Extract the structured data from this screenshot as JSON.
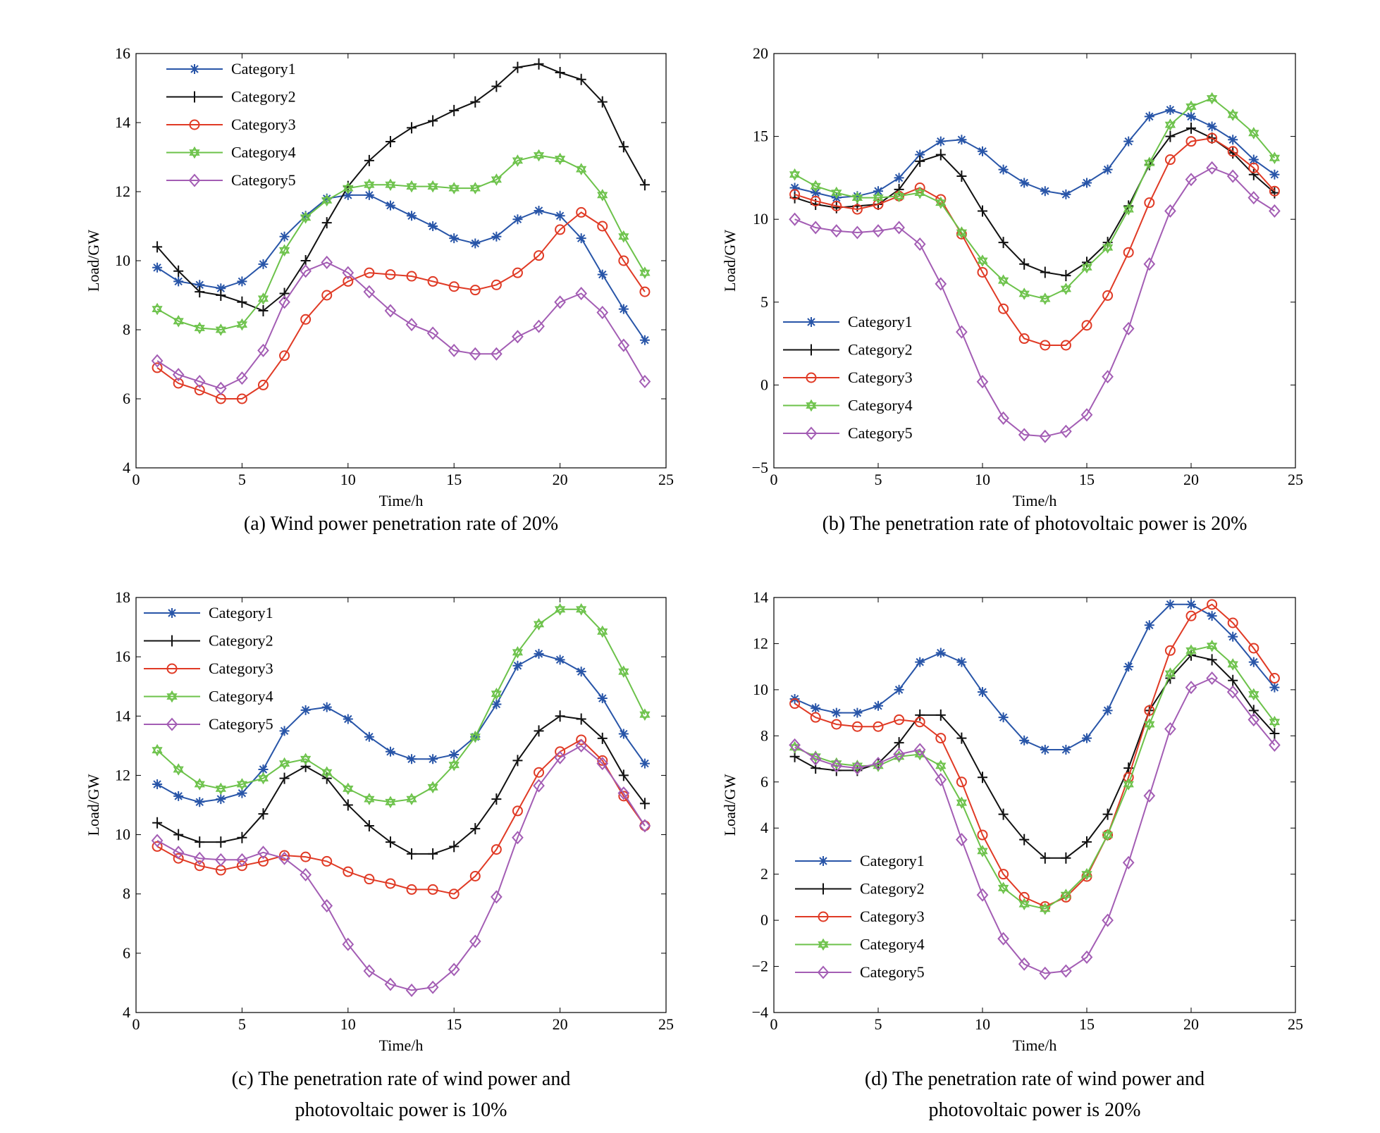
{
  "series_styles": [
    {
      "name": "Category1",
      "color": "#2855a8",
      "marker": "asterisk"
    },
    {
      "name": "Category2",
      "color": "#111111",
      "marker": "plus"
    },
    {
      "name": "Category3",
      "color": "#e03a25",
      "marker": "circle"
    },
    {
      "name": "Category4",
      "color": "#6cc24a",
      "marker": "hexagram"
    },
    {
      "name": "Category5",
      "color": "#a35db4",
      "marker": "diamond"
    }
  ],
  "chart_data": [
    {
      "type": "line",
      "title": "",
      "caption_lines": [
        "(a) Wind power penetration rate of 20%"
      ],
      "xlabel": "Time/h",
      "ylabel": "Load/GW",
      "xlim": [
        0,
        25
      ],
      "ylim": [
        4,
        16
      ],
      "xticks": [
        0,
        5,
        10,
        15,
        20,
        25
      ],
      "yticks": [
        4,
        6,
        8,
        10,
        12,
        14,
        16
      ],
      "legend": "top-left",
      "x": [
        1,
        2,
        3,
        4,
        5,
        6,
        7,
        8,
        9,
        10,
        11,
        12,
        13,
        14,
        15,
        16,
        17,
        18,
        19,
        20,
        21,
        22,
        23,
        24
      ],
      "series": [
        {
          "name": "Category1",
          "values": [
            9.8,
            9.4,
            9.3,
            9.2,
            9.4,
            9.9,
            10.7,
            11.3,
            11.8,
            11.9,
            11.9,
            11.6,
            11.3,
            11.0,
            10.65,
            10.5,
            10.7,
            11.2,
            11.45,
            11.3,
            10.65,
            9.6,
            8.6,
            7.7
          ]
        },
        {
          "name": "Category2",
          "values": [
            10.4,
            9.7,
            9.1,
            9.0,
            8.8,
            8.55,
            9.05,
            10.0,
            11.1,
            12.15,
            12.9,
            13.45,
            13.85,
            14.05,
            14.35,
            14.6,
            15.05,
            15.6,
            15.7,
            15.45,
            15.25,
            14.6,
            13.3,
            12.2
          ]
        },
        {
          "name": "Category3",
          "values": [
            6.9,
            6.45,
            6.25,
            6.0,
            6.0,
            6.4,
            7.25,
            8.3,
            9.0,
            9.4,
            9.65,
            9.6,
            9.55,
            9.4,
            9.25,
            9.15,
            9.3,
            9.65,
            10.15,
            10.9,
            11.4,
            11.0,
            10.0,
            9.1
          ]
        },
        {
          "name": "Category4",
          "values": [
            8.6,
            8.25,
            8.05,
            8.0,
            8.15,
            8.9,
            10.3,
            11.25,
            11.75,
            12.1,
            12.2,
            12.2,
            12.15,
            12.15,
            12.1,
            12.1,
            12.35,
            12.9,
            13.05,
            12.95,
            12.65,
            11.9,
            10.7,
            9.65
          ]
        },
        {
          "name": "Category5",
          "values": [
            7.1,
            6.7,
            6.5,
            6.3,
            6.6,
            7.4,
            8.8,
            9.7,
            9.95,
            9.65,
            9.1,
            8.55,
            8.15,
            7.9,
            7.4,
            7.3,
            7.3,
            7.8,
            8.1,
            8.8,
            9.05,
            8.5,
            7.55,
            6.5
          ]
        }
      ]
    },
    {
      "type": "line",
      "title": "",
      "caption_lines": [
        "(b) The penetration rate of photovoltaic power is 20%"
      ],
      "xlabel": "Time/h",
      "ylabel": "Load/GW",
      "xlim": [
        0,
        25
      ],
      "ylim": [
        -5,
        20
      ],
      "xticks": [
        0,
        5,
        10,
        15,
        20,
        25
      ],
      "yticks": [
        -5,
        0,
        5,
        10,
        15,
        20
      ],
      "legend": "bottom-left",
      "x": [
        1,
        2,
        3,
        4,
        5,
        6,
        7,
        8,
        9,
        10,
        11,
        12,
        13,
        14,
        15,
        16,
        17,
        18,
        19,
        20,
        21,
        22,
        23,
        24
      ],
      "series": [
        {
          "name": "Category1",
          "values": [
            11.9,
            11.6,
            11.3,
            11.4,
            11.7,
            12.5,
            13.9,
            14.7,
            14.8,
            14.1,
            13.0,
            12.2,
            11.7,
            11.5,
            12.2,
            13.0,
            14.7,
            16.2,
            16.6,
            16.2,
            15.6,
            14.8,
            13.6,
            12.7
          ]
        },
        {
          "name": "Category2",
          "values": [
            11.3,
            10.9,
            10.7,
            10.8,
            10.9,
            11.8,
            13.5,
            13.9,
            12.6,
            10.5,
            8.6,
            7.3,
            6.8,
            6.6,
            7.4,
            8.6,
            10.8,
            13.3,
            15.0,
            15.5,
            14.9,
            14.0,
            12.7,
            11.6
          ]
        },
        {
          "name": "Category3",
          "values": [
            11.5,
            11.1,
            10.8,
            10.6,
            10.9,
            11.4,
            11.9,
            11.2,
            9.1,
            6.8,
            4.6,
            2.8,
            2.4,
            2.4,
            3.6,
            5.4,
            8.0,
            11.0,
            13.6,
            14.7,
            14.9,
            14.1,
            13.1,
            11.7
          ]
        },
        {
          "name": "Category4",
          "values": [
            12.7,
            12.0,
            11.6,
            11.3,
            11.3,
            11.4,
            11.6,
            11.0,
            9.2,
            7.5,
            6.3,
            5.5,
            5.2,
            5.8,
            7.1,
            8.3,
            10.6,
            13.4,
            15.7,
            16.8,
            17.3,
            16.3,
            15.2,
            13.7
          ]
        },
        {
          "name": "Category5",
          "values": [
            10.0,
            9.5,
            9.3,
            9.2,
            9.3,
            9.5,
            8.5,
            6.1,
            3.2,
            0.2,
            -2.0,
            -3.0,
            -3.1,
            -2.8,
            -1.8,
            0.5,
            3.4,
            7.3,
            10.5,
            12.4,
            13.1,
            12.6,
            11.3,
            10.5
          ]
        }
      ]
    },
    {
      "type": "line",
      "title": "",
      "caption_lines": [
        "(c) The penetration rate of wind power and",
        "photovoltaic power is 10%"
      ],
      "xlabel": "Time/h",
      "ylabel": "Load/GW",
      "xlim": [
        0,
        25
      ],
      "ylim": [
        4,
        18
      ],
      "xticks": [
        0,
        5,
        10,
        15,
        20,
        25
      ],
      "yticks": [
        4,
        6,
        8,
        10,
        12,
        14,
        16,
        18
      ],
      "legend": "top-left",
      "x": [
        1,
        2,
        3,
        4,
        5,
        6,
        7,
        8,
        9,
        10,
        11,
        12,
        13,
        14,
        15,
        16,
        17,
        18,
        19,
        20,
        21,
        22,
        23,
        24
      ],
      "series": [
        {
          "name": "Category1",
          "values": [
            11.7,
            11.3,
            11.1,
            11.2,
            11.4,
            12.2,
            13.5,
            14.2,
            14.3,
            13.9,
            13.3,
            12.8,
            12.55,
            12.55,
            12.7,
            13.3,
            14.4,
            15.7,
            16.1,
            15.9,
            15.5,
            14.6,
            13.4,
            12.4
          ]
        },
        {
          "name": "Category2",
          "values": [
            10.4,
            10.0,
            9.75,
            9.75,
            9.9,
            10.7,
            11.9,
            12.3,
            11.9,
            11.0,
            10.3,
            9.75,
            9.35,
            9.35,
            9.6,
            10.2,
            11.2,
            12.5,
            13.5,
            14.0,
            13.9,
            13.25,
            12.0,
            11.05
          ]
        },
        {
          "name": "Category3",
          "values": [
            9.6,
            9.2,
            8.95,
            8.8,
            8.95,
            9.1,
            9.3,
            9.25,
            9.1,
            8.75,
            8.5,
            8.35,
            8.15,
            8.15,
            8.0,
            8.6,
            9.5,
            10.8,
            12.1,
            12.8,
            13.2,
            12.5,
            11.3,
            10.3
          ]
        },
        {
          "name": "Category4",
          "values": [
            12.85,
            12.2,
            11.7,
            11.55,
            11.7,
            11.9,
            12.4,
            12.55,
            12.1,
            11.55,
            11.2,
            11.1,
            11.2,
            11.6,
            12.35,
            13.3,
            14.75,
            16.15,
            17.1,
            17.6,
            17.6,
            16.85,
            15.5,
            14.05
          ]
        },
        {
          "name": "Category5",
          "values": [
            9.8,
            9.4,
            9.2,
            9.15,
            9.15,
            9.4,
            9.2,
            8.65,
            7.6,
            6.3,
            5.4,
            4.95,
            4.75,
            4.85,
            5.45,
            6.4,
            7.9,
            9.9,
            11.65,
            12.6,
            13.0,
            12.4,
            11.4,
            10.3
          ]
        }
      ]
    },
    {
      "type": "line",
      "title": "",
      "caption_lines": [
        "(d) The penetration rate of wind power and",
        "photovoltaic power is 20%"
      ],
      "xlabel": "Time/h",
      "ylabel": "Load/GW",
      "xlim": [
        0,
        25
      ],
      "ylim": [
        -4,
        14
      ],
      "xticks": [
        0,
        5,
        10,
        15,
        20,
        25
      ],
      "yticks": [
        -4,
        -2,
        0,
        2,
        4,
        6,
        8,
        10,
        12,
        14
      ],
      "legend": "bottom-left",
      "x": [
        1,
        2,
        3,
        4,
        5,
        6,
        7,
        8,
        9,
        10,
        11,
        12,
        13,
        14,
        15,
        16,
        17,
        18,
        19,
        20,
        21,
        22,
        23,
        24
      ],
      "series": [
        {
          "name": "Category1",
          "values": [
            9.6,
            9.2,
            9.0,
            9.0,
            9.3,
            10.0,
            11.2,
            11.6,
            11.2,
            9.9,
            8.8,
            7.8,
            7.4,
            7.4,
            7.9,
            9.1,
            11.0,
            12.8,
            13.7,
            13.7,
            13.2,
            12.3,
            11.2,
            10.1
          ]
        },
        {
          "name": "Category2",
          "values": [
            7.1,
            6.6,
            6.5,
            6.5,
            6.8,
            7.7,
            8.9,
            8.9,
            7.9,
            6.2,
            4.6,
            3.5,
            2.7,
            2.7,
            3.4,
            4.6,
            6.6,
            9.1,
            10.5,
            11.5,
            11.3,
            10.4,
            9.1,
            8.1
          ]
        },
        {
          "name": "Category3",
          "values": [
            9.4,
            8.8,
            8.5,
            8.4,
            8.4,
            8.7,
            8.6,
            7.9,
            6.0,
            3.7,
            2.0,
            1.0,
            0.6,
            1.0,
            1.9,
            3.7,
            6.2,
            9.1,
            11.7,
            13.2,
            13.7,
            12.9,
            11.8,
            10.5
          ]
        },
        {
          "name": "Category4",
          "values": [
            7.5,
            7.1,
            6.8,
            6.7,
            6.7,
            7.1,
            7.2,
            6.7,
            5.1,
            3.0,
            1.4,
            0.7,
            0.5,
            1.1,
            2.0,
            3.7,
            5.9,
            8.5,
            10.7,
            11.7,
            11.9,
            11.1,
            9.8,
            8.6
          ]
        },
        {
          "name": "Category5",
          "values": [
            7.6,
            7.0,
            6.7,
            6.6,
            6.8,
            7.2,
            7.4,
            6.1,
            3.5,
            1.1,
            -0.8,
            -1.9,
            -2.3,
            -2.2,
            -1.6,
            0.0,
            2.5,
            5.4,
            8.3,
            10.1,
            10.5,
            9.9,
            8.7,
            7.6
          ]
        }
      ]
    }
  ]
}
